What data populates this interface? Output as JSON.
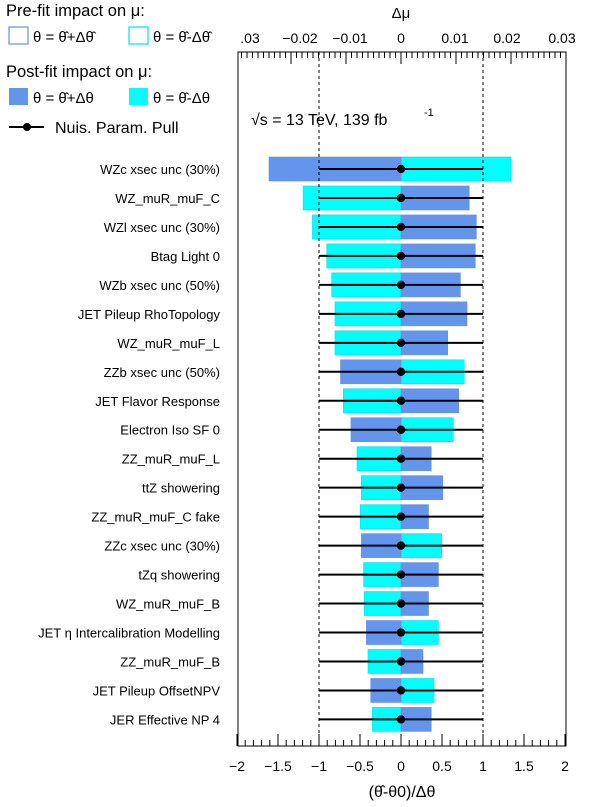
{
  "legend": {
    "prefit_title": "Pre-fit impact on  μ:",
    "postfit_title": "Post-fit impact on  μ:",
    "plus_label": "θ = θ̂+Δθ",
    "minus_label": "θ = θ̂-Δθ",
    "prefit_plus_label": "θ = θ̂+Δθ̂",
    "prefit_minus_label": "θ = θ̂-Δθ̂",
    "pull_label": "Nuis. Param. Pull"
  },
  "annotation": {
    "text": "√s = 13 TeV, 139 fb",
    "superscript": "-1"
  },
  "colors": {
    "prefit_plus_border": "#6b8fd6",
    "prefit_minus_border": "#00e0e8",
    "postfit_plus_fill": "#6495ed",
    "postfit_minus_fill": "#00ffff",
    "pull_color": "#000000"
  },
  "chart_data": {
    "type": "bar",
    "orientation": "horizontal",
    "xlabel": "(θ̂-θ0)/Δθ",
    "top_axis_label": "Δμ",
    "xlim": [
      -2,
      2
    ],
    "top_xlim": [
      -0.03,
      0.03
    ],
    "x_ticks": [
      "−2",
      "−1.5",
      "−1",
      "−0.5",
      "0",
      "0.5",
      "1",
      "1.5",
      "2"
    ],
    "top_ticks": [
      ".03",
      "−0.02",
      "−0.01",
      "0",
      "0.01",
      "0.02",
      "0.03"
    ],
    "reference_lines": [
      -1,
      1
    ],
    "grid": false,
    "categories": [
      "WZc xsec unc (30%)",
      "WZ_muR_muF_C",
      "WZl xsec unc (30%)",
      "Btag Light 0",
      "WZb xsec unc (50%)",
      "JET Pileup RhoTopology",
      "WZ_muR_muF_L",
      "ZZb xsec unc (50%)",
      "JET Flavor Response",
      "Electron Iso SF 0",
      "ZZ_muR_muF_L",
      "ttZ showering",
      "ZZ_muR_muF_C fake",
      "ZZc xsec unc (30%)",
      "tZq showering",
      "WZ_muR_muF_B",
      "JET η Intercalibration Modelling",
      "ZZ_muR_muF_B",
      "JET Pileup OffsetNPV",
      "JER Effective NP 4"
    ],
    "series": [
      {
        "name": "θ = θ̂+Δθ",
        "values": [
          -0.024,
          0.0124,
          0.0137,
          0.0135,
          0.0108,
          0.012,
          0.0085,
          -0.011,
          0.0105,
          -0.0091,
          0.0055,
          0.0076,
          0.005,
          -0.0072,
          0.0068,
          0.005,
          -0.0063,
          0.004,
          -0.0055,
          0.0055
        ]
      },
      {
        "name": "θ = θ̂-Δθ",
        "values": [
          0.02,
          -0.0178,
          -0.0161,
          -0.0135,
          -0.0126,
          -0.012,
          -0.012,
          0.0115,
          -0.0105,
          0.0095,
          -0.008,
          -0.0072,
          -0.0074,
          0.0074,
          -0.0068,
          -0.0067,
          0.0068,
          -0.006,
          0.006,
          -0.0052
        ]
      },
      {
        "name": "Nuis. Param. Pull",
        "values": [
          0.0,
          0.0,
          0.0,
          0.0,
          0.0,
          0.0,
          0.0,
          0.0,
          0.0,
          0.0,
          0.0,
          0.0,
          0.0,
          0.0,
          0.0,
          0.0,
          0.0,
          0.0,
          0.0,
          0.0
        ],
        "errors": [
          1.0,
          1.0,
          1.0,
          1.0,
          1.0,
          1.0,
          1.0,
          1.0,
          1.0,
          1.0,
          1.0,
          1.0,
          1.0,
          1.0,
          1.0,
          1.0,
          1.0,
          1.0,
          1.0,
          1.0
        ]
      }
    ]
  }
}
